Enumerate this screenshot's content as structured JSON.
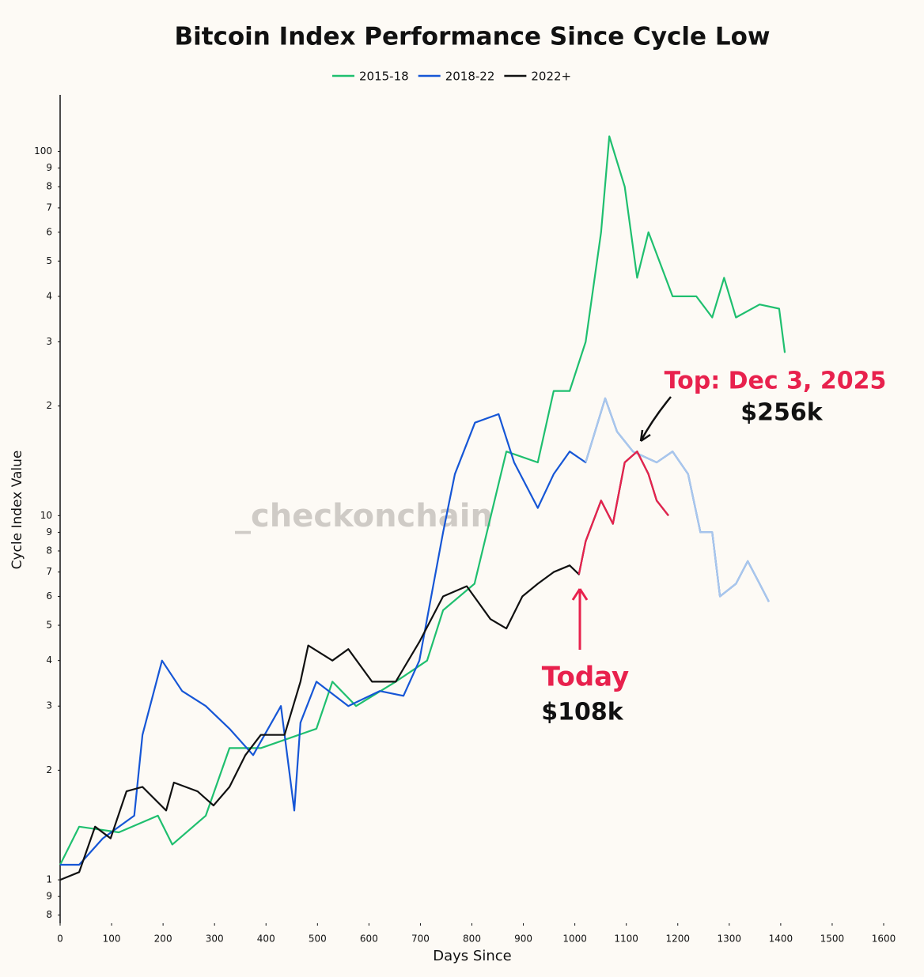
{
  "chart_data": {
    "type": "line",
    "title": "Bitcoin Index Performance Since Cycle Low",
    "x_label": "Days Since",
    "y_label": "Cycle Index Value",
    "watermark": "_checkonchain",
    "log_y": true,
    "xlim": [
      0,
      1600
    ],
    "xticks": [
      0,
      100,
      200,
      300,
      400,
      500,
      600,
      700,
      800,
      900,
      1000,
      1100,
      1200,
      1300,
      1400,
      1500,
      1600
    ],
    "ylim": [
      0.76,
      143
    ],
    "yticks": [
      {
        "value": 0.8,
        "label": "8"
      },
      {
        "value": 0.9,
        "label": "9"
      },
      1,
      2,
      3,
      4,
      5,
      6,
      7,
      8,
      9,
      10,
      {
        "value": 20,
        "label": "2"
      },
      {
        "value": 30,
        "label": "3"
      },
      {
        "value": 40,
        "label": "4"
      },
      {
        "value": 50,
        "label": "5"
      },
      {
        "value": 60,
        "label": "6"
      },
      {
        "value": 70,
        "label": "7"
      },
      {
        "value": 80,
        "label": "8"
      },
      {
        "value": 90,
        "label": "9"
      },
      100
    ],
    "series": [
      {
        "name": "2015-18",
        "color": "#1fbf6f",
        "x": [
          0,
          37,
          114,
          190,
          218,
          283,
          329,
          390,
          498,
          529,
          575,
          652,
          713,
          744,
          805,
          867,
          928,
          959,
          990,
          1021,
          1051,
          1067,
          1097,
          1121,
          1143,
          1190,
          1236,
          1267,
          1290,
          1313,
          1359,
          1397,
          1408
        ],
        "values": [
          1.1,
          1.4,
          1.35,
          1.5,
          1.25,
          1.5,
          2.3,
          2.3,
          2.6,
          3.5,
          3.0,
          3.5,
          4.0,
          5.5,
          6.5,
          15,
          14,
          22,
          22,
          30,
          60,
          110,
          80,
          45,
          60,
          40,
          40,
          35,
          45,
          35,
          38,
          37,
          28
        ]
      },
      {
        "name": "2018-22",
        "color": "#1656d6",
        "highlight_color": "#a9c7ec",
        "x": [
          0,
          37,
          83,
          144,
          160,
          198,
          237,
          283,
          329,
          375,
          429,
          455,
          467,
          498,
          560,
          621,
          667,
          698,
          744,
          767,
          806,
          852,
          882,
          928,
          959,
          990,
          1021,
          1059,
          1082,
          1113,
          1159,
          1190,
          1220,
          1244,
          1267,
          1282,
          1313,
          1336,
          1359,
          1377
        ],
        "values": [
          1.1,
          1.1,
          1.3,
          1.5,
          2.5,
          4.0,
          3.3,
          3.0,
          2.6,
          2.2,
          3.0,
          1.55,
          2.7,
          3.5,
          3.0,
          3.3,
          3.2,
          4.0,
          9,
          13,
          18,
          19,
          14,
          10.5,
          13,
          15,
          14,
          21,
          17,
          15,
          14,
          15,
          13,
          9,
          9,
          6,
          6.5,
          7.5,
          6.5,
          5.8
        ]
      },
      {
        "name": "2022+",
        "color": "#111111",
        "highlight_color": "#e8214d",
        "x": [
          0,
          37,
          68,
          98,
          129,
          160,
          206,
          221,
          267,
          298,
          329,
          360,
          390,
          436,
          467,
          482,
          529,
          560,
          606,
          652,
          698,
          744,
          790,
          836,
          867,
          898,
          928,
          959,
          990,
          1008,
          1021,
          1051,
          1074,
          1097,
          1121,
          1143,
          1159,
          1182
        ],
        "values": [
          1.0,
          1.05,
          1.4,
          1.3,
          1.75,
          1.8,
          1.55,
          1.85,
          1.75,
          1.6,
          1.8,
          2.2,
          2.5,
          2.5,
          3.5,
          4.4,
          4.0,
          4.3,
          3.5,
          3.5,
          4.5,
          6.0,
          6.4,
          5.2,
          4.9,
          6.0,
          6.5,
          7.0,
          7.3,
          6.9,
          8.5,
          11,
          9.5,
          14,
          15,
          13,
          11,
          10
        ]
      }
    ],
    "annotations": [
      {
        "text": "Top: Dec 3, 2025"
      },
      {
        "text": "$256k"
      },
      {
        "text": "Today",
        "x": 1008
      },
      {
        "text": "$108k"
      }
    ]
  }
}
